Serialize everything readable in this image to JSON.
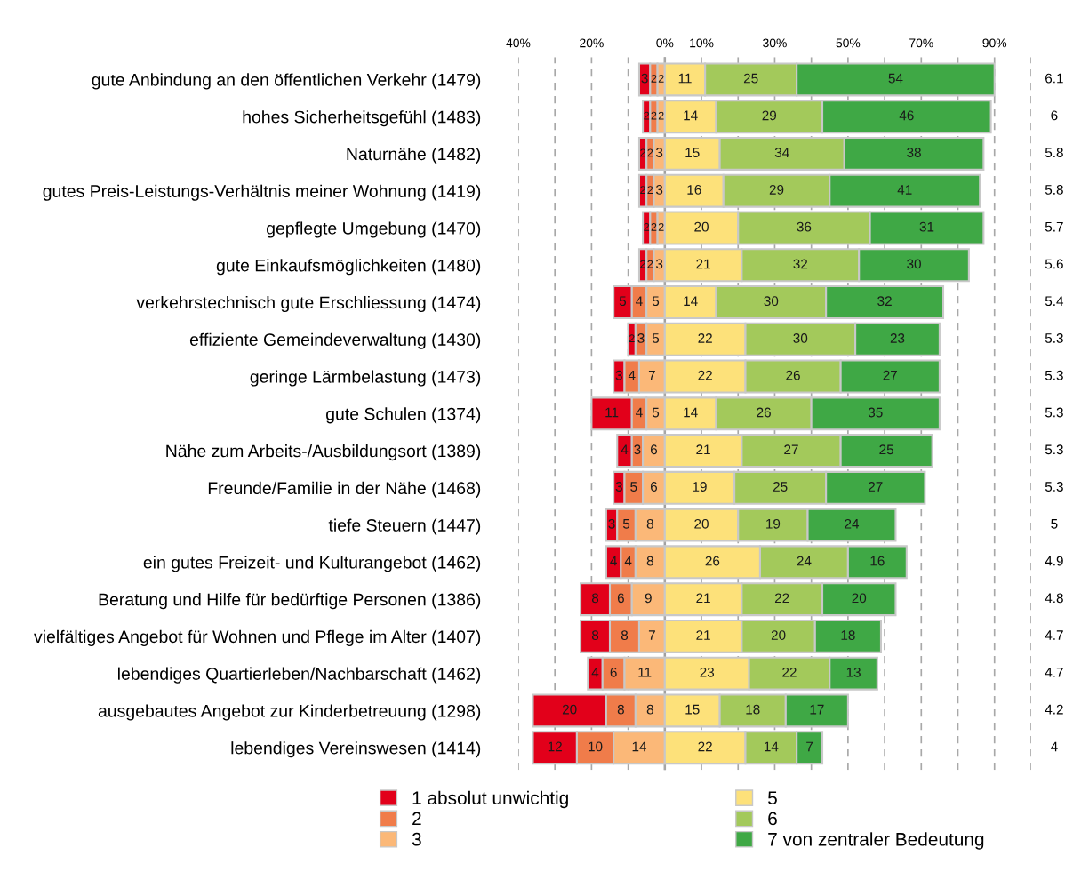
{
  "chart_data": {
    "type": "bar",
    "orientation": "horizontal",
    "categories": [
      "gute Anbindung an den öffentlichen Verkehr (1479)",
      "hohes Sicherheitsgefühl (1483)",
      "Naturnähe (1482)",
      "gutes Preis-Leistungs-Verhältnis meiner Wohnung (1419)",
      "gepflegte Umgebung (1470)",
      "gute Einkaufsmöglichkeiten (1480)",
      "verkehrstechnisch gute Erschliessung (1474)",
      "effiziente Gemeindeverwaltung (1430)",
      "geringe Lärmbelastung (1473)",
      "gute Schulen (1374)",
      "Nähe zum Arbeits-/Ausbildungsort (1389)",
      "Freunde/Familie in der Nähe (1468)",
      "tiefe Steuern (1447)",
      "ein gutes Freizeit- und Kulturangebot (1462)",
      "Beratung und Hilfe für bedürftige Personen (1386)",
      "vielfältiges Angebot für Wohnen und Pflege im Alter (1407)",
      "lebendiges Quartierleben/Nachbarschaft (1462)",
      "ausgebautes Angebot zur Kinderbetreuung (1298)",
      "lebendiges Vereinswesen (1414)"
    ],
    "series": [
      {
        "name": "1 absolut unwichtig",
        "color": "#e2001a",
        "values": [
          3,
          2,
          2,
          2,
          2,
          2,
          5,
          2,
          3,
          11,
          4,
          3,
          3,
          4,
          8,
          8,
          4,
          20,
          12
        ],
        "base": [
          -7,
          -6,
          -7,
          -7,
          -6,
          -7,
          -14,
          -10,
          -14,
          -20,
          -13,
          -14,
          -16,
          -16,
          -23,
          -23,
          -21,
          -36,
          -36
        ]
      },
      {
        "name": "2",
        "color": "#f07c4a",
        "values": [
          2,
          2,
          2,
          2,
          2,
          2,
          4,
          3,
          4,
          4,
          3,
          5,
          5,
          4,
          6,
          8,
          6,
          8,
          10
        ],
        "base": [
          -4,
          -4,
          -5,
          -5,
          -4,
          -5,
          -9,
          -8,
          -11,
          -9,
          -9,
          -11,
          -13,
          -12,
          -15,
          -15,
          -17,
          -16,
          -24
        ]
      },
      {
        "name": "3",
        "color": "#fbb878",
        "values": [
          2,
          2,
          3,
          3,
          2,
          3,
          5,
          5,
          7,
          5,
          6,
          6,
          8,
          8,
          9,
          7,
          11,
          8,
          14
        ],
        "base": [
          -2,
          -2,
          -3,
          -3,
          -2,
          -3,
          -5,
          -5,
          -7,
          -5,
          -6,
          -6,
          -8,
          -8,
          -9,
          -7,
          -11,
          -8,
          -14
        ]
      },
      {
        "name": "5",
        "color": "#fde17a",
        "values": [
          11,
          14,
          15,
          16,
          20,
          21,
          14,
          22,
          22,
          14,
          21,
          19,
          20,
          26,
          21,
          21,
          23,
          15,
          22
        ],
        "base": [
          0,
          0,
          0,
          0,
          0,
          0,
          0,
          0,
          0,
          0,
          0,
          0,
          0,
          0,
          0,
          0,
          0,
          0,
          0
        ]
      },
      {
        "name": "6",
        "color": "#a3c95b",
        "values": [
          25,
          29,
          34,
          29,
          36,
          32,
          30,
          30,
          26,
          26,
          27,
          25,
          19,
          24,
          22,
          20,
          22,
          18,
          14
        ],
        "base": [
          11,
          14,
          15,
          16,
          20,
          21,
          14,
          22,
          22,
          14,
          21,
          19,
          20,
          26,
          21,
          21,
          23,
          15,
          22
        ]
      },
      {
        "name": "7 von zentraler Bedeutung",
        "color": "#3fa845",
        "values": [
          54,
          46,
          38,
          41,
          31,
          30,
          32,
          23,
          27,
          35,
          25,
          27,
          24,
          16,
          20,
          18,
          13,
          17,
          7
        ],
        "base": [
          36,
          43,
          49,
          45,
          56,
          53,
          44,
          52,
          48,
          40,
          48,
          44,
          39,
          50,
          43,
          41,
          45,
          33,
          36
        ]
      }
    ],
    "data_labels": true,
    "xlim": [
      -40,
      100
    ],
    "xticks": [
      {
        "value": -40,
        "label": "40%"
      },
      {
        "value": -30,
        "label": null
      },
      {
        "value": -20,
        "label": "20%"
      },
      {
        "value": -10,
        "label": null
      },
      {
        "value": 0,
        "label": "0%"
      },
      {
        "value": 10,
        "label": "10%"
      },
      {
        "value": 20,
        "label": null
      },
      {
        "value": 30,
        "label": "30%"
      },
      {
        "value": 40,
        "label": null
      },
      {
        "value": 50,
        "label": "50%"
      },
      {
        "value": 60,
        "label": null
      },
      {
        "value": 70,
        "label": "70%"
      },
      {
        "value": 80,
        "label": null
      },
      {
        "value": 90,
        "label": "90%"
      },
      {
        "value": 100,
        "label": null
      }
    ],
    "grid": "x",
    "ref_lines": [
      {
        "axis": "x",
        "value": 0,
        "color": "#a0a0a0",
        "line_style": "solid"
      }
    ],
    "legend": "bottom",
    "annotations": [
      "6.1",
      "6",
      "5.8",
      "5.8",
      "5.7",
      "5.6",
      "5.4",
      "5.3",
      "5.3",
      "5.3",
      "5.3",
      "5.3",
      "5",
      "4.9",
      "4.8",
      "4.7",
      "4.7",
      "4.2",
      "4"
    ]
  }
}
